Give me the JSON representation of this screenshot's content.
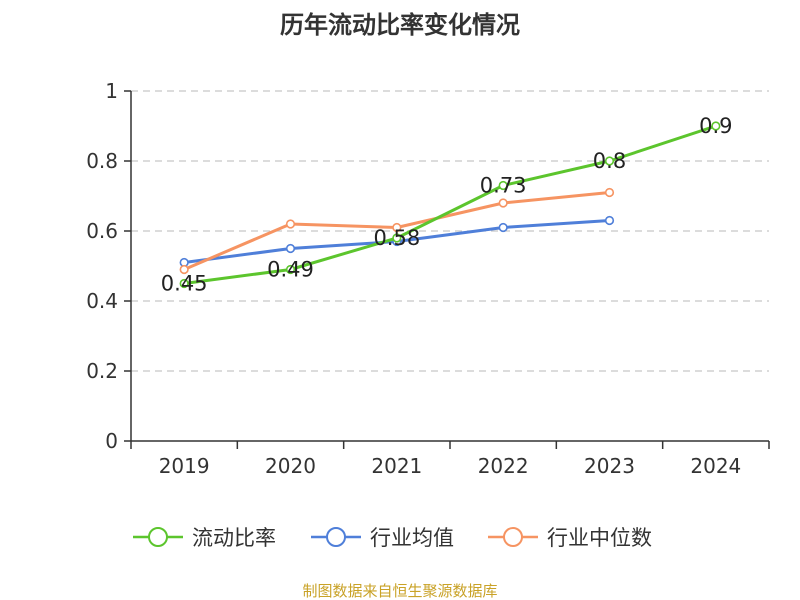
{
  "chart_data": {
    "type": "line",
    "title": "历年流动比率变化情况",
    "categories": [
      "2019",
      "2020",
      "2021",
      "2022",
      "2023",
      "2024"
    ],
    "yticks": [
      "0",
      "0.2",
      "0.4",
      "0.6",
      "0.8",
      "1"
    ],
    "ylim": [
      0,
      1
    ],
    "grid": true,
    "legend_position": "bottom",
    "series": [
      {
        "name": "流动比率",
        "color": "#5cc52d",
        "values": [
          0.45,
          0.49,
          0.58,
          0.73,
          0.8,
          0.9
        ],
        "data_labels": [
          "0.45",
          "0.49",
          "0.58",
          "0.73",
          "0.8",
          "0.9"
        ]
      },
      {
        "name": "行业均值",
        "color": "#4f7fd9",
        "values": [
          0.51,
          0.55,
          0.57,
          0.61,
          0.63,
          null
        ]
      },
      {
        "name": "行业中位数",
        "color": "#f69462",
        "values": [
          0.49,
          0.62,
          0.61,
          0.68,
          0.71,
          null
        ]
      }
    ],
    "source": "制图数据来自恒生聚源数据库"
  }
}
